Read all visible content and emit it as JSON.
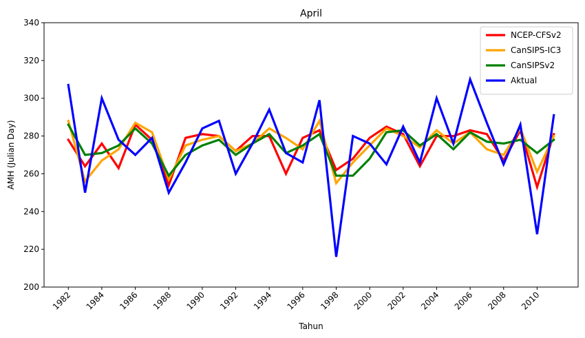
{
  "chart_data": {
    "type": "line",
    "title": "April",
    "xlabel": "Tahun",
    "ylabel": "AMH (Julian Day)",
    "x": [
      1982,
      1983,
      1984,
      1985,
      1986,
      1987,
      1988,
      1989,
      1990,
      1991,
      1992,
      1993,
      1994,
      1995,
      1996,
      1997,
      1998,
      1999,
      2000,
      2001,
      2002,
      2003,
      2004,
      2005,
      2006,
      2007,
      2008,
      2009,
      2010,
      2011
    ],
    "xticks": [
      "1982",
      "1984",
      "1986",
      "1988",
      "1990",
      "1992",
      "1994",
      "1996",
      "1998",
      "2000",
      "2002",
      "2004",
      "2006",
      "2008",
      "2010"
    ],
    "yticks": [
      "200",
      "220",
      "240",
      "260",
      "280",
      "300",
      "320",
      "340"
    ],
    "xlim": [
      1980.55,
      2012.45
    ],
    "ylim": [
      200,
      340
    ],
    "legend_position": "top-right",
    "grid": false,
    "series": [
      {
        "name": "NCEP-CFSv2",
        "color": "#ff0000",
        "values": [
          278,
          264,
          276,
          263,
          286,
          278,
          254,
          279,
          281,
          280,
          272,
          280,
          280,
          260,
          279,
          283,
          262,
          268,
          279,
          285,
          281,
          264,
          280,
          280,
          283,
          281,
          267,
          283,
          253,
          281
        ]
      },
      {
        "name": "CanSIPS-IC3",
        "color": "#ffa500",
        "values": [
          288,
          256,
          267,
          273,
          287,
          282,
          257,
          275,
          278,
          280,
          272,
          276,
          284,
          279,
          273,
          288,
          255,
          266,
          275,
          284,
          280,
          274,
          283,
          276,
          282,
          273,
          270,
          284,
          261,
          280
        ]
      },
      {
        "name": "CanSIPSv2",
        "color": "#008000",
        "values": [
          286,
          270,
          271,
          275,
          284,
          276,
          259,
          270,
          275,
          278,
          270,
          276,
          281,
          271,
          275,
          281,
          259,
          259,
          268,
          282,
          283,
          275,
          281,
          273,
          282,
          277,
          276,
          278,
          271,
          278
        ]
      },
      {
        "name": "Aktual",
        "color": "#0000ff",
        "values": [
          307,
          250,
          300,
          278,
          270,
          279,
          250,
          266,
          284,
          288,
          260,
          276,
          294,
          271,
          266,
          299,
          216,
          280,
          276,
          265,
          285,
          266,
          300,
          276,
          310,
          287,
          265,
          286,
          228,
          291
        ]
      }
    ]
  }
}
